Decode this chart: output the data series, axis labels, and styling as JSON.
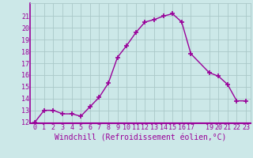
{
  "x": [
    0,
    1,
    2,
    3,
    4,
    5,
    6,
    7,
    8,
    9,
    10,
    11,
    12,
    13,
    14,
    15,
    16,
    17,
    19,
    20,
    21,
    22,
    23
  ],
  "y": [
    12.0,
    13.0,
    13.0,
    12.7,
    12.7,
    12.5,
    13.3,
    14.1,
    15.3,
    17.5,
    18.5,
    19.6,
    20.5,
    20.7,
    21.0,
    21.2,
    20.5,
    17.8,
    16.2,
    15.9,
    15.2,
    13.8,
    13.8
  ],
  "line_color": "#990099",
  "marker": "+",
  "marker_size": 4,
  "bg_color": "#cce8e8",
  "grid_color": "#aac8c8",
  "xlabel": "Windchill (Refroidissement éolien,°C)",
  "ylim_min": 12,
  "ylim_max": 22,
  "xlim_min": -0.5,
  "xlim_max": 23.5,
  "yticks": [
    12,
    13,
    14,
    15,
    16,
    17,
    18,
    19,
    20,
    21
  ],
  "xticks": [
    0,
    1,
    2,
    3,
    4,
    5,
    6,
    7,
    8,
    9,
    10,
    11,
    12,
    13,
    14,
    15,
    16,
    17,
    19,
    20,
    21,
    22,
    23
  ],
  "tick_label_fontsize": 6,
  "xlabel_fontsize": 7,
  "spine_color": "#990099",
  "bottom_line_color": "#990099"
}
